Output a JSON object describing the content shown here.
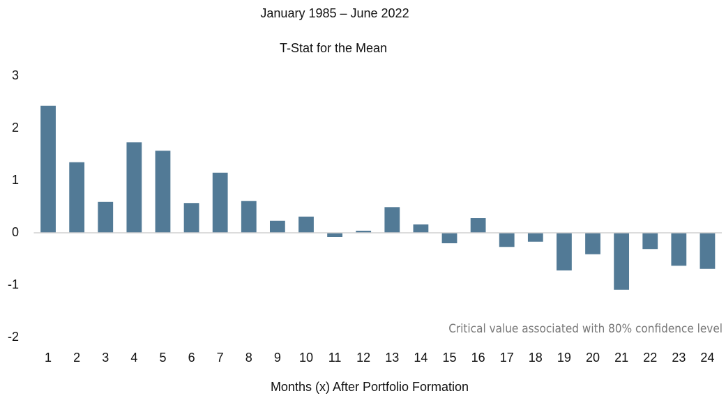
{
  "chart_data": {
    "type": "bar",
    "subtitle": "January 1985 – June 2022",
    "title": "T-Stat for the Mean",
    "x_label": "Months (x) After Portfolio Formation",
    "annotation": "Critical value associated  with 80% confidence level",
    "categories": [
      "1",
      "2",
      "3",
      "4",
      "5",
      "6",
      "7",
      "8",
      "9",
      "10",
      "11",
      "12",
      "13",
      "14",
      "15",
      "16",
      "17",
      "18",
      "19",
      "20",
      "21",
      "22",
      "23",
      "24"
    ],
    "values": [
      2.43,
      1.35,
      0.59,
      1.73,
      1.57,
      0.57,
      1.15,
      0.61,
      0.23,
      0.31,
      -0.08,
      0.04,
      0.49,
      0.16,
      -0.2,
      0.28,
      -0.27,
      -0.17,
      -0.72,
      -0.41,
      -1.09,
      -0.31,
      -0.63,
      -0.69
    ],
    "color": "#527a96",
    "ylim": [
      -2,
      3
    ],
    "yticks": [
      -2,
      -1,
      0,
      1,
      2,
      3
    ],
    "grid": false
  }
}
